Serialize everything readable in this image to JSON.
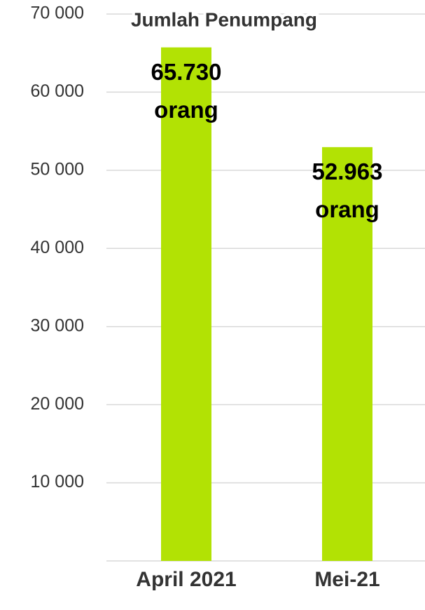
{
  "chart_data": {
    "type": "bar",
    "title": "Jumlah Penumpang",
    "categories": [
      "April 2021",
      "Mei-21"
    ],
    "values": [
      65730,
      52963
    ],
    "value_labels": [
      "65.730 orang",
      "52.963 orang"
    ],
    "color": "#b2e204",
    "ylim": [
      0,
      70000
    ],
    "yticks": [
      {
        "value": 10000,
        "label": "10 000"
      },
      {
        "value": 20000,
        "label": "20 000"
      },
      {
        "value": 30000,
        "label": "30 000"
      },
      {
        "value": 40000,
        "label": "40 000"
      },
      {
        "value": 50000,
        "label": "50 000"
      },
      {
        "value": 60000,
        "label": "60 000"
      },
      {
        "value": 70000,
        "label": "70 000"
      }
    ],
    "grid": true
  }
}
